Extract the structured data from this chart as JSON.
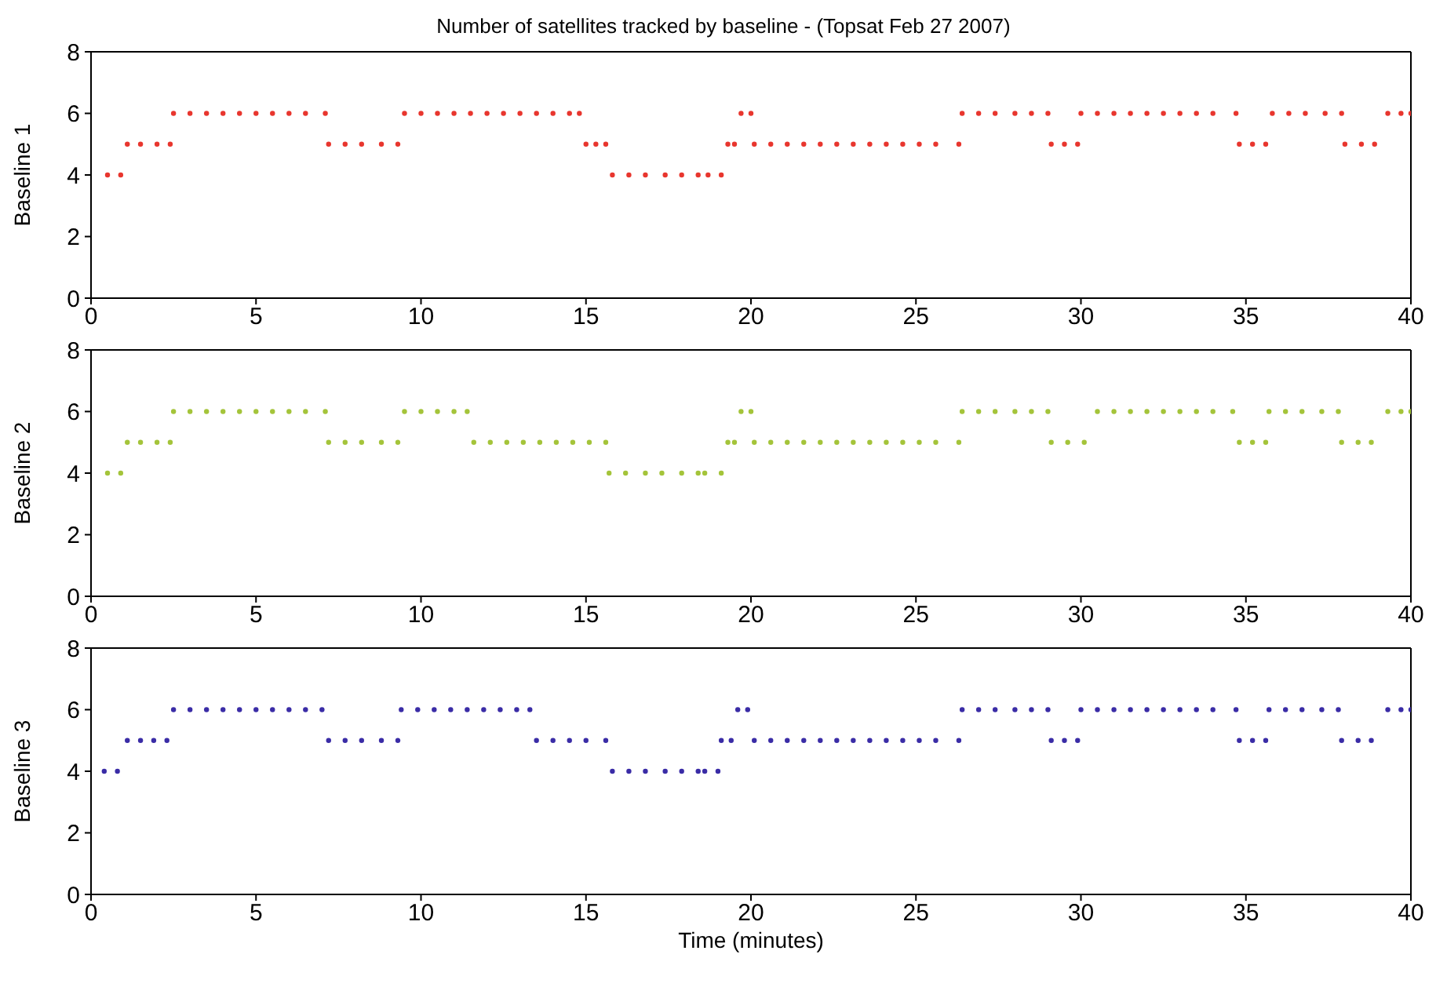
{
  "chart_data": [
    {
      "type": "scatter",
      "title": "Number of satellites tracked by baseline - (Topsat Feb 27 2007)",
      "ylabel": "Baseline 1",
      "color": "#e8362e",
      "marker": "circle",
      "xlim": [
        0,
        40
      ],
      "xticks": [
        0,
        5,
        10,
        15,
        20,
        25,
        30,
        35,
        40
      ],
      "ylim": [
        0,
        8
      ],
      "yticks": [
        0,
        2,
        4,
        6,
        8
      ],
      "x": [
        0.5,
        0.9,
        1.1,
        1.5,
        2.0,
        2.4,
        2.5,
        3.0,
        3.5,
        4.0,
        4.5,
        5.0,
        5.5,
        6.0,
        6.5,
        7.1,
        7.2,
        7.7,
        8.2,
        8.8,
        9.3,
        9.5,
        10.0,
        10.5,
        11.0,
        11.5,
        12.0,
        12.5,
        13.0,
        13.5,
        14.0,
        14.5,
        14.8,
        15.0,
        15.3,
        15.6,
        15.8,
        16.3,
        16.8,
        17.4,
        17.9,
        18.4,
        18.7,
        19.1,
        19.3,
        19.5,
        19.7,
        20.0,
        20.1,
        20.6,
        21.1,
        21.6,
        22.1,
        22.6,
        23.1,
        23.6,
        24.1,
        24.6,
        25.1,
        25.6,
        26.3,
        26.4,
        26.9,
        27.4,
        28.0,
        28.5,
        29.0,
        29.1,
        29.5,
        29.9,
        30.0,
        30.5,
        31.0,
        31.5,
        32.0,
        32.5,
        33.0,
        33.5,
        34.0,
        34.7,
        34.8,
        35.2,
        35.6,
        35.8,
        36.3,
        36.8,
        37.4,
        37.9,
        38.0,
        38.5,
        38.9,
        39.3,
        39.7,
        40.0
      ],
      "values": [
        4,
        4,
        5,
        5,
        5,
        5,
        6,
        6,
        6,
        6,
        6,
        6,
        6,
        6,
        6,
        6,
        5,
        5,
        5,
        5,
        5,
        6,
        6,
        6,
        6,
        6,
        6,
        6,
        6,
        6,
        6,
        6,
        6,
        5,
        5,
        5,
        4,
        4,
        4,
        4,
        4,
        4,
        4,
        4,
        5,
        5,
        6,
        6,
        5,
        5,
        5,
        5,
        5,
        5,
        5,
        5,
        5,
        5,
        5,
        5,
        5,
        6,
        6,
        6,
        6,
        6,
        6,
        5,
        5,
        5,
        6,
        6,
        6,
        6,
        6,
        6,
        6,
        6,
        6,
        6,
        5,
        5,
        5,
        6,
        6,
        6,
        6,
        6,
        5,
        5,
        5,
        6,
        6,
        6
      ]
    },
    {
      "type": "scatter",
      "ylabel": "Baseline 2",
      "color": "#a4c43a",
      "marker": "circle",
      "xlim": [
        0,
        40
      ],
      "xticks": [
        0,
        5,
        10,
        15,
        20,
        25,
        30,
        35,
        40
      ],
      "ylim": [
        0,
        8
      ],
      "yticks": [
        0,
        2,
        4,
        6,
        8
      ],
      "x": [
        0.5,
        0.9,
        1.1,
        1.5,
        2.0,
        2.4,
        2.5,
        3.0,
        3.5,
        4.0,
        4.5,
        5.0,
        5.5,
        6.0,
        6.5,
        7.1,
        7.2,
        7.7,
        8.2,
        8.8,
        9.3,
        9.5,
        10.0,
        10.5,
        11.0,
        11.4,
        11.6,
        12.1,
        12.6,
        13.1,
        13.6,
        14.1,
        14.6,
        15.1,
        15.6,
        15.7,
        16.2,
        16.8,
        17.3,
        17.9,
        18.4,
        18.6,
        19.1,
        19.3,
        19.5,
        19.7,
        20.0,
        20.1,
        20.6,
        21.1,
        21.6,
        22.1,
        22.6,
        23.1,
        23.6,
        24.1,
        24.6,
        25.1,
        25.6,
        26.3,
        26.4,
        26.9,
        27.4,
        28.0,
        28.5,
        29.0,
        29.1,
        29.6,
        30.1,
        30.5,
        31.0,
        31.5,
        32.0,
        32.5,
        33.0,
        33.5,
        34.0,
        34.6,
        34.8,
        35.2,
        35.6,
        35.7,
        36.2,
        36.7,
        37.3,
        37.8,
        37.9,
        38.4,
        38.8,
        39.3,
        39.7,
        40.0
      ],
      "values": [
        4,
        4,
        5,
        5,
        5,
        5,
        6,
        6,
        6,
        6,
        6,
        6,
        6,
        6,
        6,
        6,
        5,
        5,
        5,
        5,
        5,
        6,
        6,
        6,
        6,
        6,
        5,
        5,
        5,
        5,
        5,
        5,
        5,
        5,
        5,
        4,
        4,
        4,
        4,
        4,
        4,
        4,
        4,
        5,
        5,
        6,
        6,
        5,
        5,
        5,
        5,
        5,
        5,
        5,
        5,
        5,
        5,
        5,
        5,
        5,
        6,
        6,
        6,
        6,
        6,
        6,
        5,
        5,
        5,
        6,
        6,
        6,
        6,
        6,
        6,
        6,
        6,
        6,
        5,
        5,
        5,
        6,
        6,
        6,
        6,
        6,
        5,
        5,
        5,
        6,
        6,
        6
      ]
    },
    {
      "type": "scatter",
      "ylabel": "Baseline 3",
      "xlabel": "Time (minutes)",
      "color": "#3a2ca6",
      "marker": "circle",
      "xlim": [
        0,
        40
      ],
      "xticks": [
        0,
        5,
        10,
        15,
        20,
        25,
        30,
        35,
        40
      ],
      "ylim": [
        0,
        8
      ],
      "yticks": [
        0,
        2,
        4,
        6,
        8
      ],
      "x": [
        0.4,
        0.8,
        1.1,
        1.5,
        1.9,
        2.3,
        2.5,
        3.0,
        3.5,
        4.0,
        4.5,
        5.0,
        5.5,
        6.0,
        6.5,
        7.0,
        7.2,
        7.7,
        8.2,
        8.8,
        9.3,
        9.4,
        9.9,
        10.4,
        10.9,
        11.4,
        11.9,
        12.4,
        12.9,
        13.3,
        13.5,
        14.0,
        14.5,
        15.0,
        15.6,
        15.8,
        16.3,
        16.8,
        17.4,
        17.9,
        18.4,
        18.6,
        19.0,
        19.1,
        19.4,
        19.6,
        19.9,
        20.1,
        20.6,
        21.1,
        21.6,
        22.1,
        22.6,
        23.1,
        23.6,
        24.1,
        24.6,
        25.1,
        25.6,
        26.3,
        26.4,
        26.9,
        27.4,
        28.0,
        28.5,
        29.0,
        29.1,
        29.5,
        29.9,
        30.0,
        30.5,
        31.0,
        31.5,
        32.0,
        32.5,
        33.0,
        33.5,
        34.0,
        34.7,
        34.8,
        35.2,
        35.6,
        35.7,
        36.2,
        36.7,
        37.3,
        37.8,
        37.9,
        38.4,
        38.8,
        39.3,
        39.7,
        40.0
      ],
      "values": [
        4,
        4,
        5,
        5,
        5,
        5,
        6,
        6,
        6,
        6,
        6,
        6,
        6,
        6,
        6,
        6,
        5,
        5,
        5,
        5,
        5,
        6,
        6,
        6,
        6,
        6,
        6,
        6,
        6,
        6,
        5,
        5,
        5,
        5,
        5,
        4,
        4,
        4,
        4,
        4,
        4,
        4,
        4,
        5,
        5,
        6,
        6,
        5,
        5,
        5,
        5,
        5,
        5,
        5,
        5,
        5,
        5,
        5,
        5,
        5,
        6,
        6,
        6,
        6,
        6,
        6,
        5,
        5,
        5,
        6,
        6,
        6,
        6,
        6,
        6,
        6,
        6,
        6,
        6,
        5,
        5,
        5,
        6,
        6,
        6,
        6,
        6,
        5,
        5,
        5,
        6,
        6,
        6
      ]
    }
  ]
}
